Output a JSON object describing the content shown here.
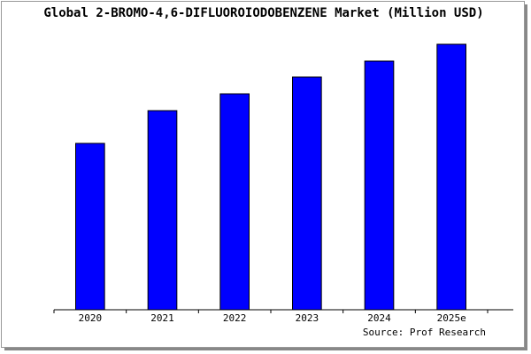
{
  "chart_data": {
    "type": "bar",
    "title": "Global 2-BROMO-4,6-DIFLUOROIODOBENZENE Market (Million USD)",
    "categories": [
      "2020",
      "2021",
      "2022",
      "2023",
      "2024",
      "2025e"
    ],
    "values": [
      188,
      225,
      244,
      263,
      281,
      300
    ],
    "color": "#0000ff",
    "ylim": [
      0,
      300
    ],
    "source": "Source: Prof Research"
  }
}
